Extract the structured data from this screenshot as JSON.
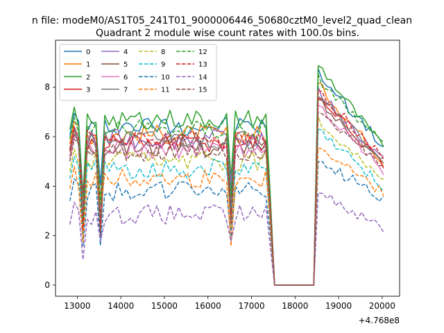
{
  "chart_data": {
    "type": "line",
    "suptitle": "n file: modeM0/AS1T05_241T01_9000006446_50680cztM0_level2_quad_clean",
    "title": "Quadrant 2 module wise count rates with 100.0s bins.",
    "xlabel": "",
    "ylabel": "",
    "x_offset_label": "+4.768e8",
    "xlim": [
      12500,
      20400
    ],
    "ylim": [
      -0.45,
      9.9
    ],
    "xticks": [
      13000,
      14000,
      15000,
      16000,
      17000,
      18000,
      19000,
      20000
    ],
    "xtick_labels": [
      "13000",
      "14000",
      "15000",
      "16000",
      "17000",
      "18000",
      "19000",
      "20000"
    ],
    "yticks": [
      0,
      2,
      4,
      6,
      8
    ],
    "ytick_labels": [
      "0",
      "2",
      "4",
      "6",
      "8"
    ],
    "grid": false,
    "legend_position": "top-left",
    "x_start": 12830,
    "x_step": 100,
    "n_points": 73,
    "gap_start_index": 47,
    "gap_end_index": 56,
    "dip_indices": [
      3,
      7,
      37
    ],
    "series": [
      {
        "name": "0",
        "color": "#1f77b4",
        "dash": "solid",
        "level": 6.45,
        "end": 5.6
      },
      {
        "name": "1",
        "color": "#ff7f0e",
        "dash": "solid",
        "level": 6.1,
        "end": 5.0
      },
      {
        "name": "2",
        "color": "#2ca02c",
        "dash": "solid",
        "level": 6.7,
        "end": 5.5
      },
      {
        "name": "3",
        "color": "#d62728",
        "dash": "solid",
        "level": 5.8,
        "end": 4.8
      },
      {
        "name": "4",
        "color": "#9467bd",
        "dash": "solid",
        "level": 5.9,
        "end": 5.0
      },
      {
        "name": "5",
        "color": "#8c564b",
        "dash": "solid",
        "level": 5.6,
        "end": 4.9
      },
      {
        "name": "6",
        "color": "#e377c2",
        "dash": "solid",
        "level": 5.5,
        "end": 4.6
      },
      {
        "name": "7",
        "color": "#7f7f7f",
        "dash": "solid",
        "level": 5.85,
        "end": 5.0
      },
      {
        "name": "8",
        "color": "#bcbd22",
        "dash": "dashed",
        "level": 5.0,
        "end": 4.3
      },
      {
        "name": "9",
        "color": "#17becf",
        "dash": "dashed",
        "level": 4.7,
        "end": 4.0
      },
      {
        "name": "10",
        "color": "#1f77b4",
        "dash": "dashed",
        "level": 3.8,
        "end": 3.5
      },
      {
        "name": "11",
        "color": "#ff7f0e",
        "dash": "dashed",
        "level": 4.3,
        "end": 3.7
      },
      {
        "name": "12",
        "color": "#2ca02c",
        "dash": "dashed",
        "level": 6.3,
        "end": 5.6
      },
      {
        "name": "13",
        "color": "#d62728",
        "dash": "dashed",
        "level": 5.9,
        "end": 5.1
      },
      {
        "name": "14",
        "color": "#9467bd",
        "dash": "dashed",
        "level": 2.85,
        "end": 2.3
      },
      {
        "name": "15",
        "color": "#8c564b",
        "dash": "dashed",
        "level": 5.4,
        "end": 4.7
      }
    ]
  }
}
